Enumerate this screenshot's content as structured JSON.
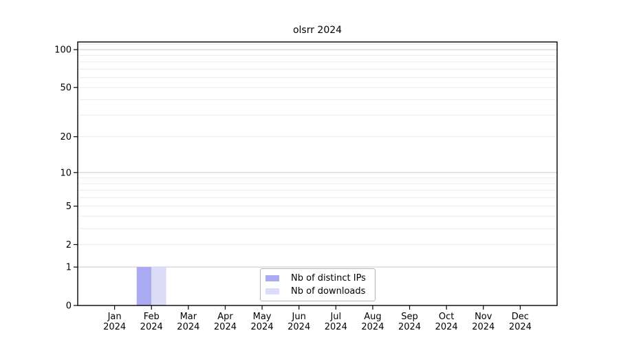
{
  "chart_data": {
    "type": "bar",
    "title": "olsrr 2024",
    "categories": [
      "Jan 2024",
      "Feb 2024",
      "Mar 2024",
      "Apr 2024",
      "May 2024",
      "Jun 2024",
      "Jul 2024",
      "Aug 2024",
      "Sep 2024",
      "Oct 2024",
      "Nov 2024",
      "Dec 2024"
    ],
    "series": [
      {
        "name": "Nb of distinct IPs",
        "color": "#aaaaf2",
        "values": [
          0,
          1,
          0,
          0,
          0,
          0,
          0,
          0,
          0,
          0,
          0,
          0
        ]
      },
      {
        "name": "Nb of downloads",
        "color": "#dcdcf8",
        "values": [
          0,
          1,
          0,
          0,
          0,
          0,
          0,
          0,
          0,
          0,
          0,
          0
        ]
      }
    ],
    "xlabel": "",
    "ylabel": "",
    "yscale": "log1p",
    "yticks": [
      0,
      1,
      2,
      5,
      10,
      20,
      50,
      100
    ],
    "ylim": [
      0,
      115
    ],
    "grid": "horizontal major+minor",
    "legend_position": "lower center",
    "major_grid_values": [
      1,
      10,
      100
    ],
    "minor_grid_values": [
      2,
      3,
      4,
      5,
      6,
      7,
      8,
      9,
      20,
      30,
      40,
      50,
      60,
      70,
      80,
      90,
      110
    ],
    "colors": {
      "bar_distinct_ips": "#aaaaf2",
      "bar_downloads": "#dcdcf8",
      "major_grid": "#c8c8c8",
      "minor_grid": "#ececec",
      "spine": "#000000",
      "text": "#000000",
      "legend_border": "#b4b4b4"
    }
  }
}
